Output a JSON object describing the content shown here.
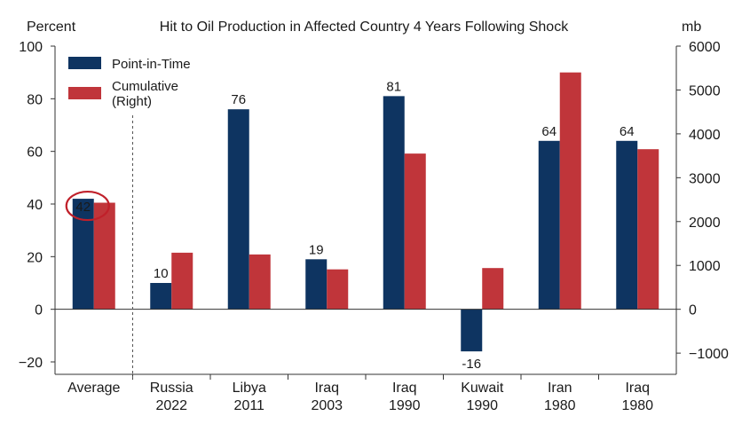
{
  "chart_data": {
    "type": "bar",
    "title": "Hit to Oil Production in Affected Country 4 Years Following Shock",
    "ylabel_left": "Percent",
    "ylabel_right": "mb",
    "ylim_left": [
      -20,
      100
    ],
    "ylim_right": [
      -1200,
      6000
    ],
    "yticks_left": [
      -20,
      0,
      20,
      40,
      60,
      80,
      100
    ],
    "yticks_right": [
      -1000,
      0,
      1000,
      2000,
      3000,
      4000,
      5000,
      6000
    ],
    "categories": [
      {
        "line1": "Average",
        "line2": ""
      },
      {
        "line1": "Russia",
        "line2": "2022"
      },
      {
        "line1": "Libya",
        "line2": "2011"
      },
      {
        "line1": "Iraq",
        "line2": "2003"
      },
      {
        "line1": "Iraq",
        "line2": "1990"
      },
      {
        "line1": "Kuwait",
        "line2": "1990"
      },
      {
        "line1": "Iran",
        "line2": "1980"
      },
      {
        "line1": "Iraq",
        "line2": "1980"
      }
    ],
    "series": [
      {
        "name": "Point-in-Time",
        "axis": "left",
        "color": "#0e3461",
        "values": [
          42,
          10,
          76,
          19,
          81,
          -16,
          64,
          64
        ],
        "labels": [
          "42",
          "10",
          "76",
          "19",
          "81",
          "-16",
          "64",
          "64"
        ]
      },
      {
        "name": "Cumulative",
        "name_line2": "(Right)",
        "axis": "right",
        "color": "#c0353a",
        "values": [
          2430,
          1290,
          1250,
          910,
          3550,
          940,
          5400,
          3650
        ]
      }
    ],
    "annotation": {
      "type": "circle",
      "target_label": "42",
      "color": "#c0202a"
    },
    "divider_after_category": 0
  }
}
